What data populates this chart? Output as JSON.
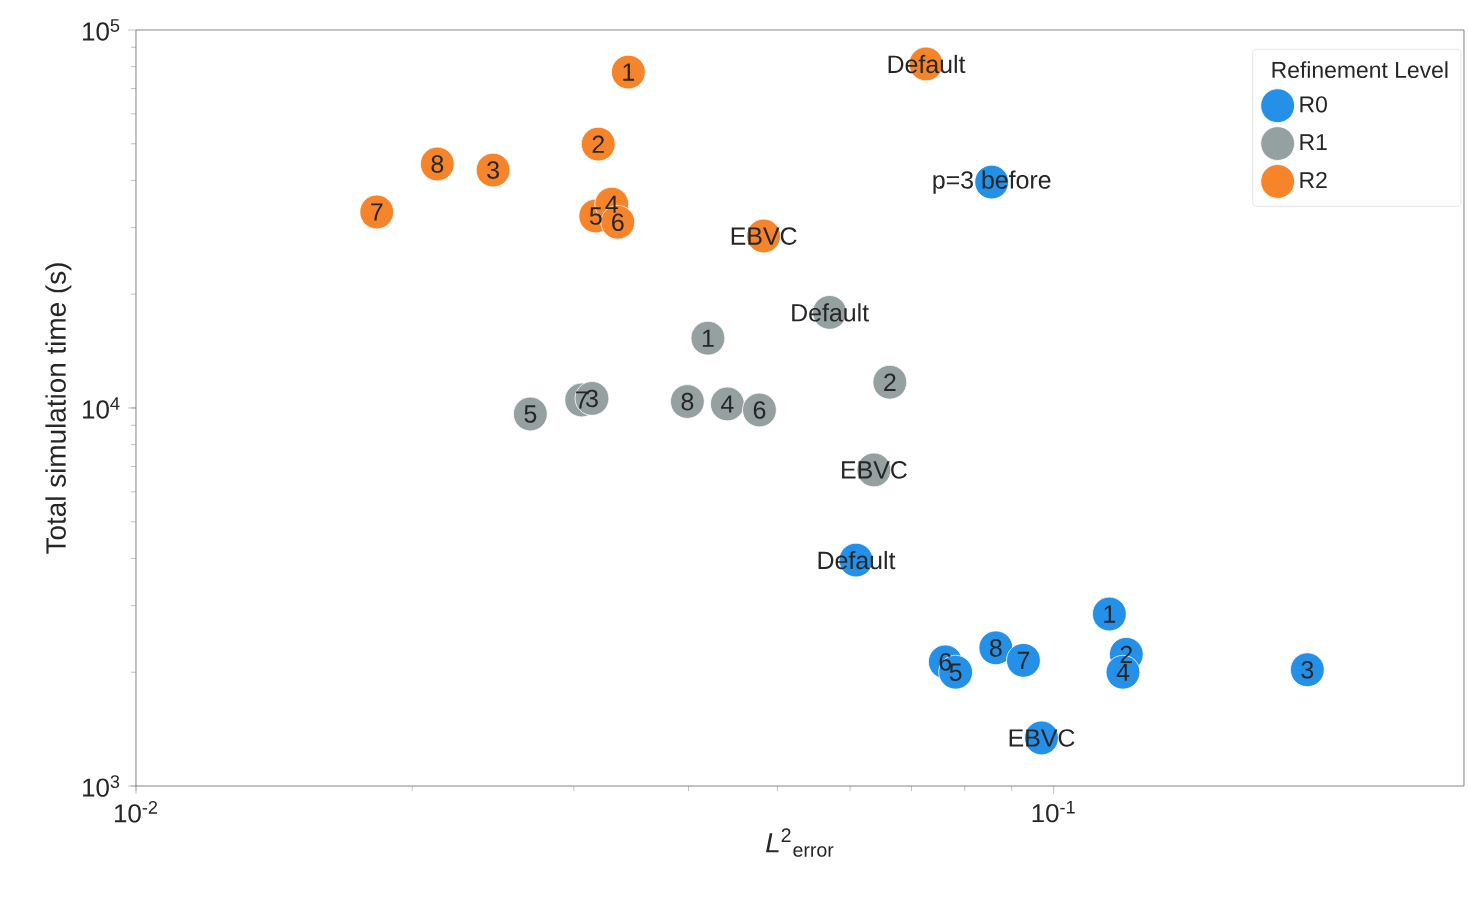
{
  "chart_data": {
    "type": "scatter",
    "xlabel": "*L*$^{2}$$_{error}$",
    "ylabel": "Total simulation time (s)",
    "legend_title": "Refinement Level",
    "legend": "top right",
    "log": "xy",
    "xlim": [
      0.01,
      0.28
    ],
    "ylim": [
      1000,
      100000
    ],
    "xticks": [
      {
        "value": 0.01,
        "label": "10$^{-2}$"
      },
      {
        "value": 0.1,
        "label": "10$^{-1}$"
      }
    ],
    "yticks": [
      {
        "value": 1000,
        "label": "10$^{3}$"
      },
      {
        "value": 10000,
        "label": "10$^{4}$"
      },
      {
        "value": 100000,
        "label": "10$^{5}$"
      }
    ],
    "series": [
      {
        "name": "R0",
        "color": "#2490e8",
        "x": [
          0.0856,
          0.0609,
          0.115,
          0.12,
          0.119,
          0.189,
          0.0865,
          0.0927,
          0.0762,
          0.0782,
          0.097
        ],
        "values": [
          39600,
          3960,
          2850,
          2230,
          2000,
          2030,
          2320,
          2150,
          2130,
          2000,
          1340
        ]
      },
      {
        "name": "R1",
        "color": "#95a0a0",
        "x": [
          0.042,
          0.0269,
          0.0306,
          0.0314,
          0.0399,
          0.0441,
          0.0478,
          0.057,
          0.0663,
          0.0637
        ],
        "values": [
          15300,
          9640,
          10500,
          10600,
          10400,
          10250,
          9880,
          17900,
          11700,
          6860
        ]
      },
      {
        "name": "R2",
        "color": "#f5842a",
        "x": [
          0.0344,
          0.0319,
          0.0213,
          0.0245,
          0.0183,
          0.0317,
          0.033,
          0.0335,
          0.0483,
          0.0726
        ],
        "values": [
          77400,
          49900,
          44200,
          42600,
          33000,
          32200,
          34600,
          31000,
          28500,
          81300
        ]
      }
    ],
    "annotations": [
      {
        "text": "p=3 before",
        "x": 0.0856,
        "y": 39600
      },
      {
        "text": "Default",
        "x": 0.0609,
        "y": 3960
      },
      {
        "text": "1",
        "x": 0.115,
        "y": 2850
      },
      {
        "text": "2",
        "x": 0.12,
        "y": 2230
      },
      {
        "text": "4",
        "x": 0.119,
        "y": 2000
      },
      {
        "text": "3",
        "x": 0.189,
        "y": 2030
      },
      {
        "text": "8",
        "x": 0.0865,
        "y": 2320
      },
      {
        "text": "7",
        "x": 0.0927,
        "y": 2150
      },
      {
        "text": "6",
        "x": 0.0762,
        "y": 2130
      },
      {
        "text": "5",
        "x": 0.0782,
        "y": 2000
      },
      {
        "text": "EBVC",
        "x": 0.097,
        "y": 1340
      },
      {
        "text": "1",
        "x": 0.042,
        "y": 15300
      },
      {
        "text": "5",
        "x": 0.0269,
        "y": 9640
      },
      {
        "text": "7",
        "x": 0.0306,
        "y": 10500
      },
      {
        "text": "3",
        "x": 0.0314,
        "y": 10600
      },
      {
        "text": "8",
        "x": 0.0399,
        "y": 10400
      },
      {
        "text": "4",
        "x": 0.0441,
        "y": 10250
      },
      {
        "text": "6",
        "x": 0.0478,
        "y": 9880
      },
      {
        "text": "Default",
        "x": 0.057,
        "y": 17900
      },
      {
        "text": "2",
        "x": 0.0663,
        "y": 11700
      },
      {
        "text": "EBVC",
        "x": 0.0637,
        "y": 6860
      },
      {
        "text": "1",
        "x": 0.0344,
        "y": 77400
      },
      {
        "text": "2",
        "x": 0.0319,
        "y": 49900
      },
      {
        "text": "8",
        "x": 0.0213,
        "y": 44200
      },
      {
        "text": "3",
        "x": 0.0245,
        "y": 42600
      },
      {
        "text": "7",
        "x": 0.0183,
        "y": 33000
      },
      {
        "text": "5",
        "x": 0.0317,
        "y": 32200
      },
      {
        "text": "4",
        "x": 0.033,
        "y": 34600
      },
      {
        "text": "6",
        "x": 0.0335,
        "y": 31000
      },
      {
        "text": "EBVC",
        "x": 0.0483,
        "y": 28500
      },
      {
        "text": "Default",
        "x": 0.0726,
        "y": 81300
      }
    ]
  }
}
